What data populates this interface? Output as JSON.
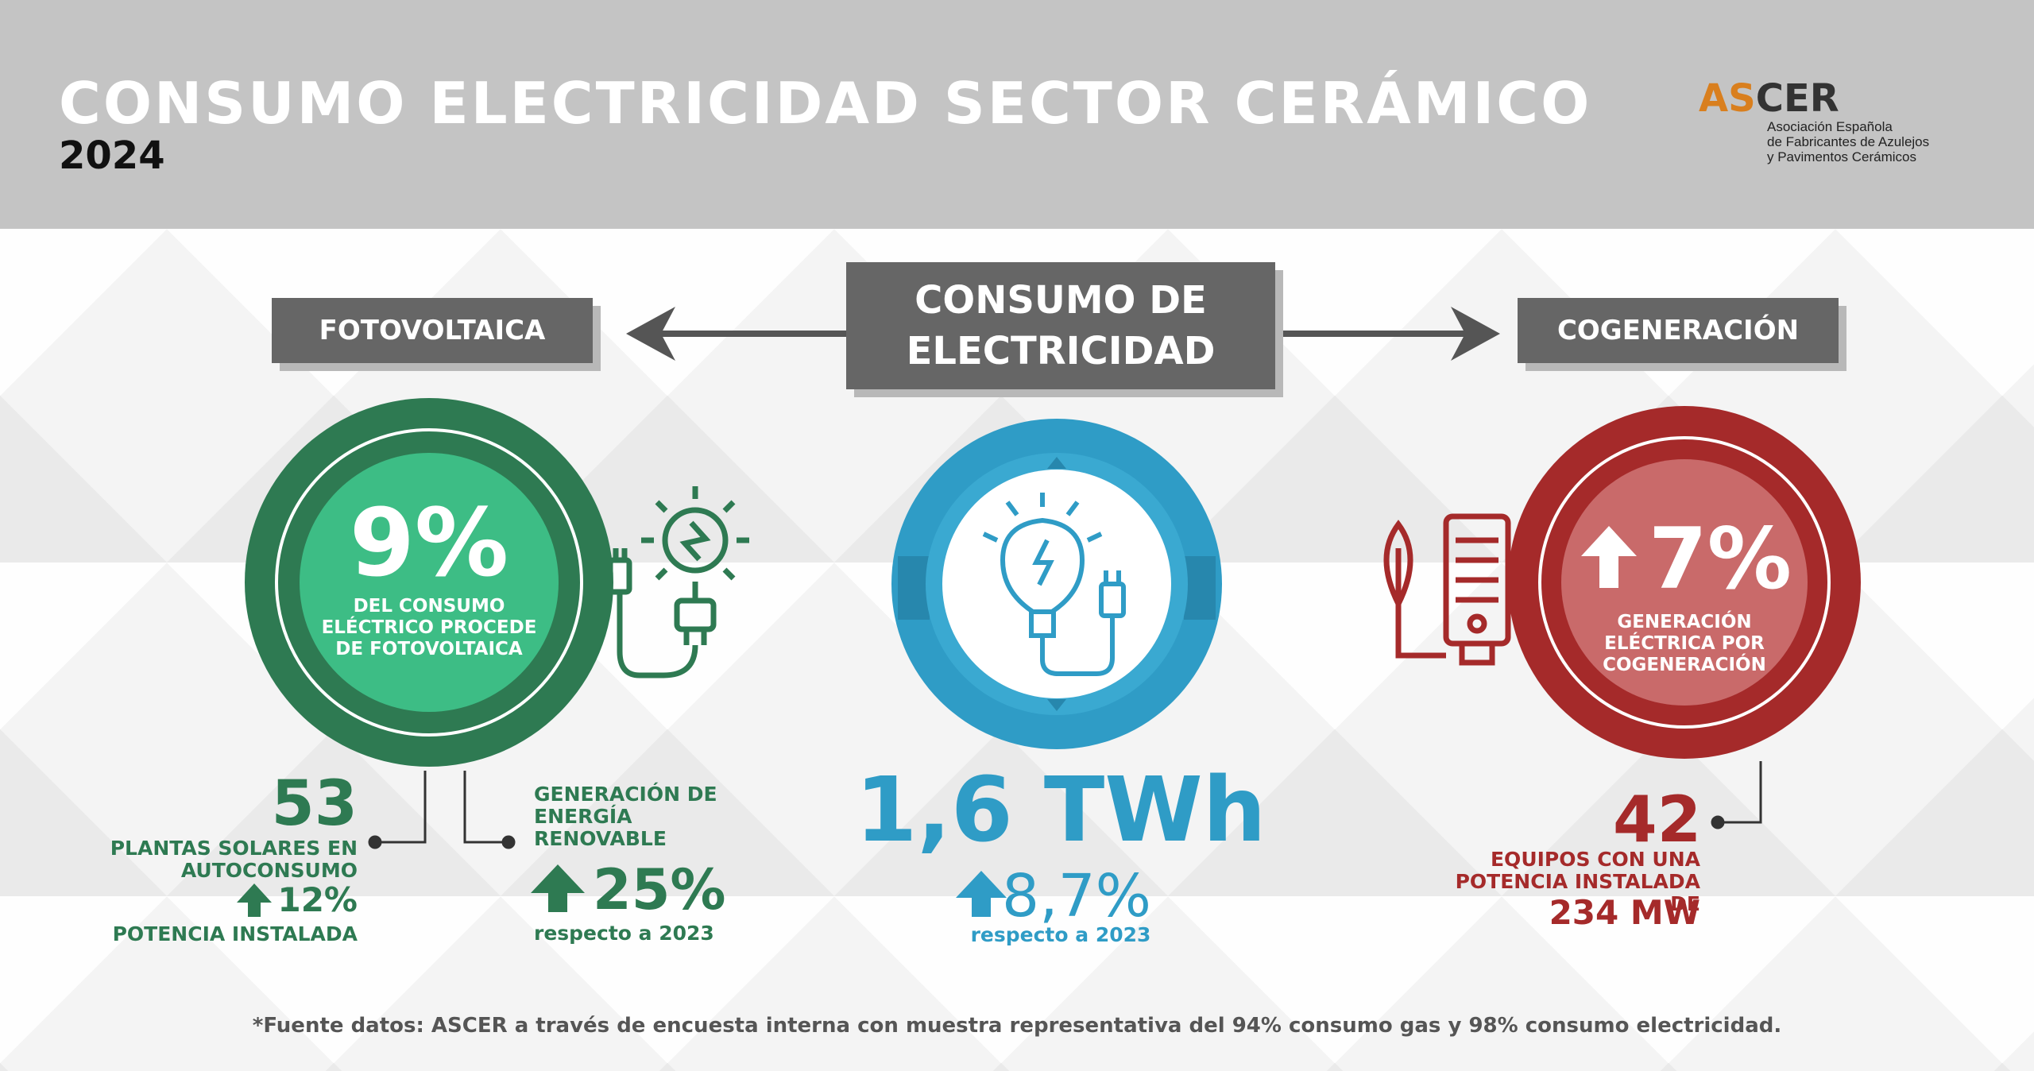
{
  "header": {
    "title": "CONSUMO ELECTRICIDAD SECTOR CERÁMICO",
    "year": "2024",
    "logo": {
      "word_part1": "AS",
      "word_part2": "CER",
      "line1": "Asociación Española",
      "line2": "de Fabricantes de Azulejos",
      "line3": "y Pavimentos Cerámicos"
    }
  },
  "boxes": {
    "center_line1": "CONSUMO DE",
    "center_line2": "ELECTRICIDAD",
    "left": "FOTOVOLTAICA",
    "right": "COGENERACIÓN"
  },
  "photovoltaic": {
    "percent": "9%",
    "description": "DEL CONSUMO ELÉCTRICO PROCEDE DE FOTOVOLTAICA",
    "plants_number": "53",
    "plants_label": "PLANTAS SOLARES EN AUTOCONSUMO",
    "plants_growth": "12%",
    "plants_growth_label": "POTENCIA INSTALADA",
    "generation_label": "GENERACIÓN DE ENERGÍA RENOVABLE",
    "generation_value": "25%",
    "generation_ref": "respecto a 2023"
  },
  "consumption": {
    "value": "1,6 TWh",
    "growth": "8,7%",
    "ref": "respecto a 2023"
  },
  "cogeneration": {
    "percent": "7%",
    "description": "GENERACIÓN ELÉCTRICA POR COGENERACIÓN",
    "equipment_number": "42",
    "equipment_label": "EQUIPOS CON UNA POTENCIA INSTALADA DE",
    "equipment_power": "234 MW"
  },
  "footer": "*Fuente datos: ASCER a través de encuesta interna con muestra representativa del 94% consumo gas y 98% consumo electricidad.",
  "colors": {
    "green_dark": "#2e7a52",
    "green_light": "#3dbd85",
    "blue": "#2f9cc6",
    "red": "#a52a2a",
    "red_light": "#c96a6a",
    "gray_box": "#666666",
    "logo_orange": "#d97f1e"
  },
  "icons": {
    "photovoltaic": "solar-plug-icon",
    "consumption": "lightbulb-plug-icon",
    "cogeneration": "leaf-building-icon"
  }
}
